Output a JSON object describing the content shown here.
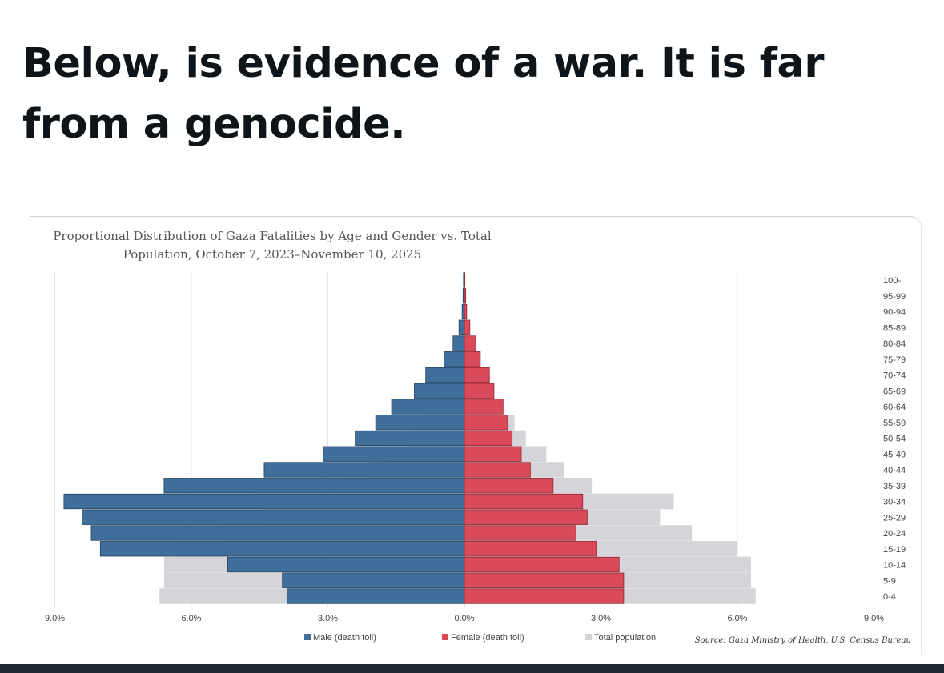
{
  "post": {
    "headline": "Below, is evidence of a war. It is far from a genocide."
  },
  "chart_data": {
    "type": "bar",
    "orientation": "horizontal-diverging",
    "title": "Proportional Distribution of Gaza Fatalities by Age and Gender vs. Total Population, October 7, 2023–November 10, 2025",
    "xlabel": "",
    "ylabel": "",
    "xlim": [
      -9,
      9
    ],
    "x_tick_labels": [
      "9.0%",
      "6.0%",
      "3.0%",
      "0.0%",
      "3.0%",
      "6.0%",
      "9.0%"
    ],
    "x_tick_values": [
      -9,
      -6,
      -3,
      0,
      3,
      6,
      9
    ],
    "categories": [
      "0-4",
      "5-9",
      "10-14",
      "15-19",
      "20-24",
      "25-29",
      "30-34",
      "35-39",
      "40-44",
      "45-49",
      "50-54",
      "55-59",
      "60-64",
      "65-69",
      "70-74",
      "75-79",
      "80-84",
      "85-89",
      "90-94",
      "95-99",
      "100-"
    ],
    "series": [
      {
        "name": "Male (death toll)",
        "color": "#3f6f9a",
        "side": "left",
        "values": [
          3.9,
          4.0,
          5.2,
          8.0,
          8.2,
          8.4,
          8.8,
          6.6,
          4.4,
          3.1,
          2.4,
          1.95,
          1.6,
          1.1,
          0.85,
          0.45,
          0.25,
          0.12,
          0.05,
          0.03,
          0.02
        ]
      },
      {
        "name": "Female (death toll)",
        "color": "#d94b5b",
        "side": "right",
        "values": [
          3.5,
          3.5,
          3.4,
          2.9,
          2.45,
          2.7,
          2.6,
          1.95,
          1.45,
          1.25,
          1.05,
          0.95,
          0.85,
          0.65,
          0.55,
          0.35,
          0.25,
          0.12,
          0.05,
          0.03,
          0.01
        ]
      },
      {
        "name": "Total population",
        "color": "#d5d5d9",
        "side": "both",
        "values_left": [
          6.7,
          6.6,
          6.6,
          6.3,
          5.3,
          4.4,
          4.6,
          2.7,
          2.1,
          1.7,
          1.3,
          1.0,
          0.8,
          0.5,
          0.35,
          0.2,
          0.1,
          0.05,
          0.02,
          0.01,
          0.0
        ],
        "values_right": [
          6.4,
          6.3,
          6.3,
          6.0,
          5.0,
          4.3,
          4.6,
          2.8,
          2.2,
          1.8,
          1.35,
          1.1,
          0.85,
          0.55,
          0.4,
          0.25,
          0.12,
          0.05,
          0.02,
          0.01,
          0.0
        ]
      }
    ],
    "legend": {
      "placement": "bottom",
      "items": [
        "Male (death toll)",
        "Female (death toll)",
        "Total population"
      ]
    },
    "source": "Source: Gaza Ministry of Health, U.S. Census Bureau",
    "grid": true
  }
}
